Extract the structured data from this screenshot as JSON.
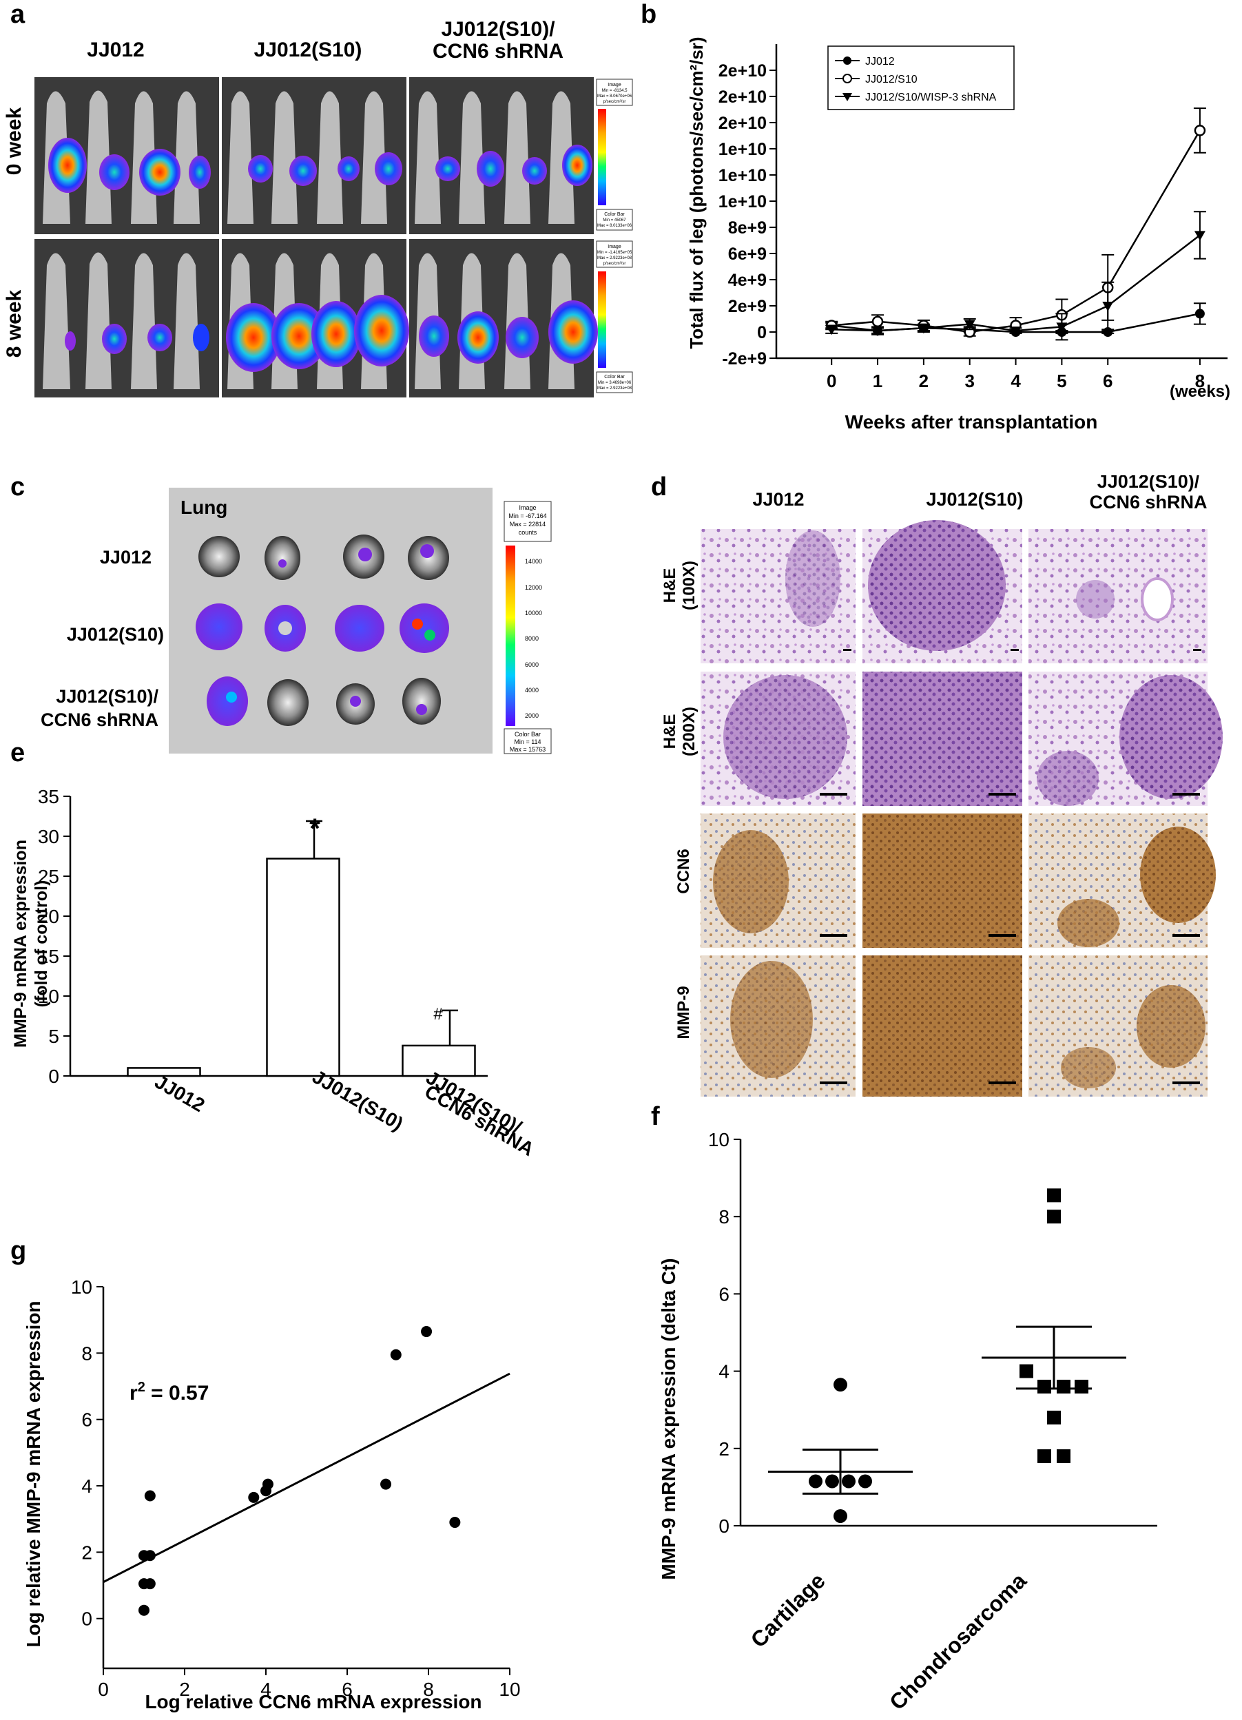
{
  "panels": {
    "a": {
      "letter": "a",
      "columns": [
        "JJ012",
        "JJ012(S10)",
        "JJ012(S10)/",
        "CCN6  shRNA"
      ],
      "rows": [
        "0 week",
        "8 week"
      ],
      "colorbar_top": {
        "header": [
          "Image",
          "Min = -8134.5",
          "Max = 8.0670e+06",
          "p/sec/cm²/sr"
        ],
        "footer": [
          "Color Bar",
          "Min = 45067",
          "Max = 8.0133e+06"
        ]
      },
      "colorbar_bottom": {
        "header": [
          "Image",
          "Min = -1.4165e+05",
          "Max = 2.9223e+08",
          "p/sec/cm²/sr"
        ],
        "footer": [
          "Color Bar",
          "Min = 3.4698e+06",
          "Max = 2.9223e+08"
        ]
      }
    },
    "b": {
      "letter": "b",
      "ylabel": "Total flux of leg (photons/sec/cm²/sr)",
      "xlabel": "Weeks after transplantation",
      "x_unit": "(weeks)",
      "yticks": [
        "-2e+9",
        "0",
        "2e+9",
        "4e+9",
        "6e+9",
        "8e+9",
        "1e+10",
        "1e+10",
        "1e+10",
        "2e+10",
        "2e+10",
        "2e+10"
      ],
      "xticks": [
        "0",
        "1",
        "2",
        "3",
        "4",
        "5",
        "6",
        "8"
      ],
      "legend": [
        "JJ012",
        "JJ012/S10",
        "JJ012/S10/WISP-3 shRNA"
      ]
    },
    "c": {
      "letter": "c",
      "title": "Lung",
      "rows": [
        "JJ012",
        "JJ012(S10)",
        "JJ012(S10)/",
        "CCN6  shRNA"
      ],
      "colorbar": {
        "header": [
          "Image",
          "Min = -67.164",
          "Max = 22814",
          "counts"
        ],
        "ticks": [
          "14000",
          "12000",
          "10000",
          "8000",
          "6000",
          "4000",
          "2000"
        ],
        "footer": [
          "Color Bar",
          "Min = 114",
          "Max = 15763"
        ]
      }
    },
    "d": {
      "letter": "d",
      "columns": [
        "JJ012",
        "JJ012(S10)",
        "JJ012(S10)/",
        "CCN6  shRNA"
      ],
      "rows": [
        [
          "H&E",
          "(100X)"
        ],
        [
          "H&E",
          "(200X)"
        ],
        [
          "CCN6"
        ],
        [
          "MMP-9"
        ]
      ]
    },
    "e": {
      "letter": "e",
      "ylabel": [
        "MMP-9 mRNA expression",
        "(fold of control)"
      ],
      "yticks": [
        "0",
        "5",
        "10",
        "15",
        "20",
        "25",
        "30",
        "35"
      ],
      "categories": [
        "JJ012",
        "JJ012(S10)",
        "JJ012(S10)/",
        "CCN6  shRNA"
      ],
      "annotations": [
        "*",
        "#"
      ]
    },
    "f": {
      "letter": "f",
      "ylabel": "MMP-9 mRNA expression (delta Ct)",
      "yticks": [
        "0",
        "2",
        "4",
        "6",
        "8",
        "10"
      ],
      "categories": [
        "Cartilage",
        "Chondrosarcoma"
      ]
    },
    "g": {
      "letter": "g",
      "ylabel": "Log relative MMP-9 mRNA expression",
      "xlabel": "Log relative  CCN6  mRNA expression",
      "r2_prefix": "r",
      "r2_sup": "2",
      "r2_value": " = 0.57",
      "yticks": [
        "0",
        "2",
        "4",
        "6",
        "8",
        "10"
      ],
      "xticks": [
        "0",
        "2",
        "4",
        "6",
        "8",
        "10"
      ]
    }
  },
  "chart_data": [
    {
      "panel": "b",
      "type": "line",
      "x": [
        0,
        1,
        2,
        3,
        4,
        5,
        6,
        8
      ],
      "xlim": [
        -1.2,
        8.6
      ],
      "ylim": [
        -2000000000.0,
        22000000000.0
      ],
      "series": [
        {
          "name": "JJ012",
          "marker": "filled-circle",
          "values": [
            500000000.0,
            100000000.0,
            300000000.0,
            200000000.0,
            0,
            0,
            0,
            1400000000.0
          ],
          "err": [
            200000000.0,
            200000000.0,
            200000000.0,
            200000000.0,
            100000000.0,
            100000000.0,
            100000000.0,
            800000000.0
          ]
        },
        {
          "name": "JJ012/S10",
          "marker": "open-circle",
          "values": [
            500000000.0,
            800000000.0,
            500000000.0,
            0,
            500000000.0,
            1300000000.0,
            3400000000.0,
            15400000000.0
          ],
          "err": [
            300000000.0,
            500000000.0,
            400000000.0,
            300000000.0,
            600000000.0,
            1200000000.0,
            2500000000.0,
            1700000000.0
          ]
        },
        {
          "name": "JJ012/S10/WISP-3 shRNA",
          "marker": "filled-triangle-down",
          "values": [
            200000000.0,
            100000000.0,
            300000000.0,
            600000000.0,
            100000000.0,
            400000000.0,
            2000000000.0,
            7400000000.0
          ],
          "err": [
            300000000.0,
            300000000.0,
            300000000.0,
            400000000.0,
            200000000.0,
            1000000000.0,
            1800000000.0,
            1800000000.0
          ]
        }
      ]
    },
    {
      "panel": "e",
      "type": "bar",
      "categories": [
        "JJ012",
        "JJ012(S10)",
        "JJ012(S10)/CCN6 shRNA"
      ],
      "values": [
        1,
        27.2,
        3.8
      ],
      "err": [
        0,
        4.7,
        4.4
      ],
      "ylim": [
        0,
        35
      ]
    },
    {
      "panel": "f",
      "type": "scatter",
      "categories": [
        "Cartilage",
        "Chondrosarcoma"
      ],
      "ylim": [
        0,
        10
      ],
      "groups": [
        {
          "name": "Cartilage",
          "marker": "circle",
          "values": [
            3.65,
            1.15,
            1.15,
            1.15,
            1.15,
            0.25
          ],
          "mean": 1.4,
          "sem": [
            0.83,
            1.97
          ]
        },
        {
          "name": "Chondrosarcoma",
          "marker": "square",
          "values": [
            8.55,
            8.0,
            4.0,
            3.6,
            3.6,
            3.6,
            2.8,
            1.8,
            1.8
          ],
          "mean": 4.35,
          "sem": [
            3.55,
            5.15
          ]
        }
      ]
    },
    {
      "panel": "g",
      "type": "scatter",
      "xlim": [
        0,
        10
      ],
      "ylim": [
        -1.5,
        10
      ],
      "points": [
        [
          1.0,
          1.9
        ],
        [
          1.15,
          1.9
        ],
        [
          1.15,
          3.7
        ],
        [
          1.0,
          1.05
        ],
        [
          1.15,
          1.05
        ],
        [
          1.0,
          0.25
        ],
        [
          3.7,
          3.65
        ],
        [
          4.0,
          3.85
        ],
        [
          4.05,
          4.05
        ],
        [
          6.95,
          4.05
        ],
        [
          7.2,
          7.95
        ],
        [
          7.95,
          8.65
        ],
        [
          8.65,
          2.9
        ]
      ],
      "fit_line": [
        [
          0,
          1.1
        ],
        [
          10,
          7.38
        ]
      ],
      "r2": 0.57
    }
  ]
}
